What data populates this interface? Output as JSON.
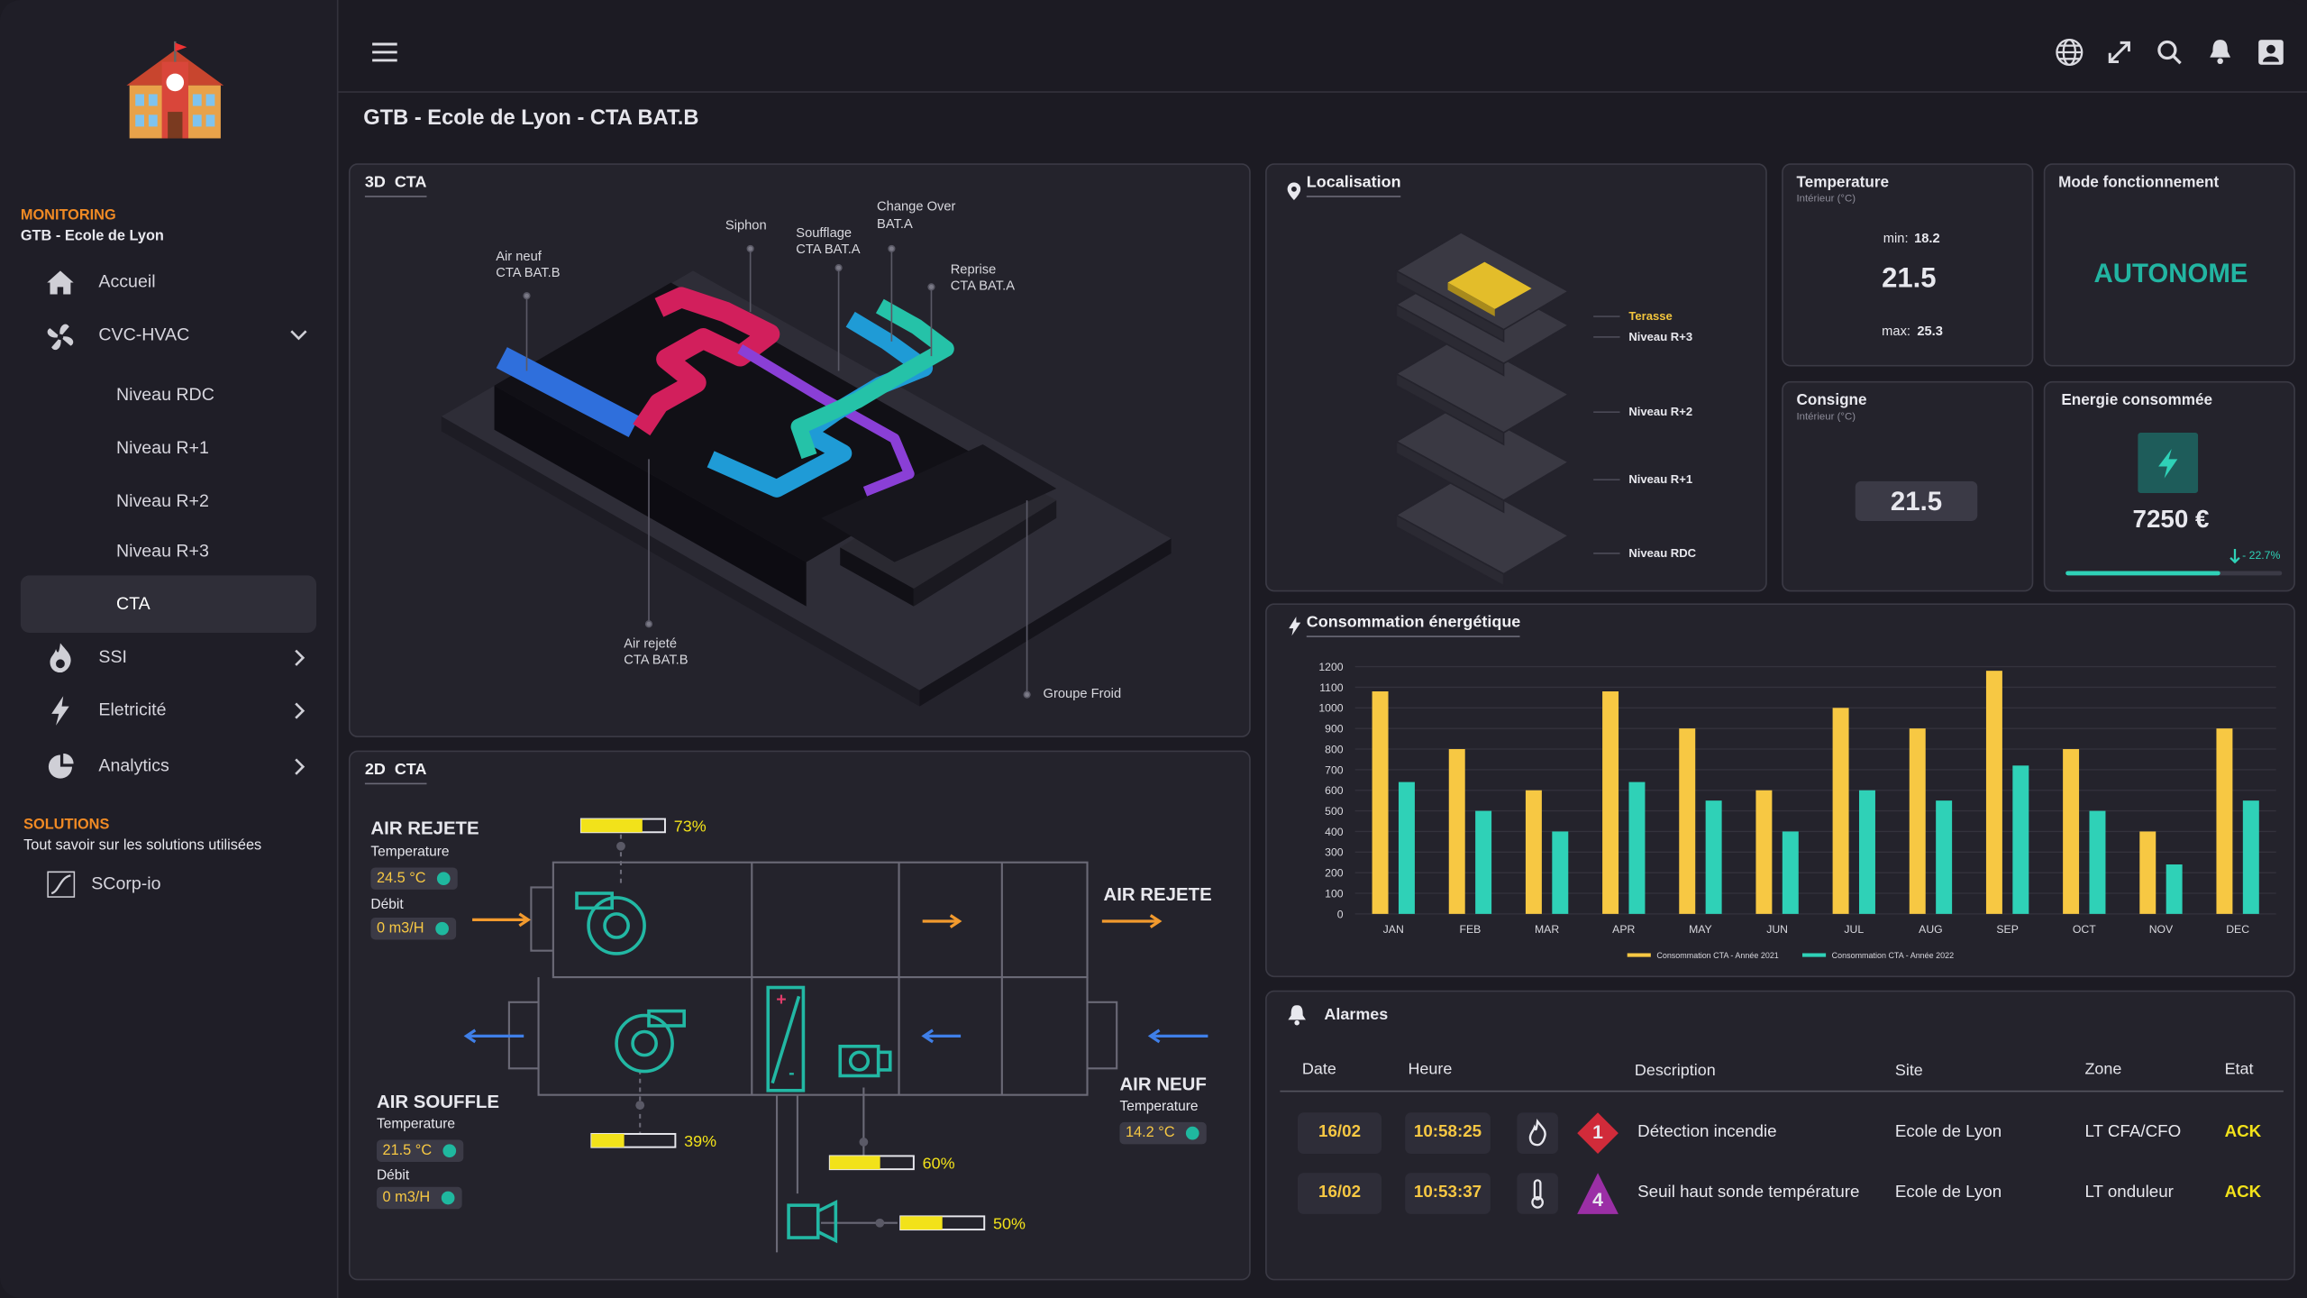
{
  "header": {
    "page_title": "GTB - Ecole de Lyon - CTA BAT.B"
  },
  "sidebar": {
    "section_label": "MONITORING",
    "site": "GTB - Ecole de Lyon",
    "nav": [
      "Accueil",
      "CVC-HVAC",
      "Niveau RDC",
      "Niveau R+1",
      "Niveau R+2",
      "Niveau R+3",
      "CTA",
      "SSI",
      "Eletricité",
      "Analytics"
    ],
    "solutions_label": "SOLUTIONS",
    "solutions_subtitle": "Tout savoir sur les solutions utilisées",
    "solutions_link": "SCorp-io"
  },
  "panel_3d": {
    "title": "3D  CTA",
    "labels": [
      {
        "name": "Air neuf",
        "sub": "CTA BAT.B"
      },
      {
        "name": "Siphon"
      },
      {
        "name": "Soufflage",
        "sub": "CTA BAT.A"
      },
      {
        "name": "Change Over",
        "sub": "BAT.A"
      },
      {
        "name": "Reprise",
        "sub": "CTA BAT.A"
      },
      {
        "name": "Air rejeté",
        "sub": "CTA BAT.B"
      },
      {
        "name": "Groupe Froid"
      }
    ]
  },
  "panel_2d": {
    "title": "2D  CTA",
    "air_rejete": {
      "name": "AIR REJETE",
      "temp_label": "Temperature",
      "temp": "24.5 °C",
      "flow_label": "Débit",
      "flow": "0 m3/H"
    },
    "air_rejete_out": "AIR REJETE",
    "air_souffle": {
      "name": "AIR SOUFFLE",
      "temp_label": "Temperature",
      "temp": "21.5 °C",
      "flow_label": "Débit",
      "flow": "0 m3/H"
    },
    "air_neuf": {
      "name": "AIR NEUF",
      "temp_label": "Temperature",
      "temp": "14.2 °C"
    },
    "gauge_lim": [
      0,
      100
    ],
    "gauges": [
      {
        "value": 73,
        "label": "73%"
      },
      {
        "value": 39,
        "label": "39%"
      },
      {
        "value": 60,
        "label": "60%"
      },
      {
        "value": 50,
        "label": "50%"
      }
    ]
  },
  "localisation": {
    "title": "Localisation",
    "levels": [
      "Terasse",
      "Niveau R+3",
      "Niveau R+2",
      "Niveau R+1",
      "Niveau RDC"
    ]
  },
  "temperature": {
    "title": "Temperature",
    "subtitle": "Intérieur (°C)",
    "min_label": "min:",
    "min": 18.2,
    "value": 21.5,
    "max_label": "max:",
    "max": 25.3
  },
  "mode": {
    "title": "Mode fonctionnement",
    "value": "AUTONOME"
  },
  "consigne": {
    "title": "Consigne",
    "subtitle": "Intérieur (°C)",
    "value": 21.5
  },
  "energy": {
    "title": "Energie consommée",
    "value": "7250 €",
    "change": "- 22.7%"
  },
  "chart_data": {
    "type": "bar",
    "title": "Consommation énergétique",
    "categories": [
      "JAN",
      "FEB",
      "MAR",
      "APR",
      "MAY",
      "JUN",
      "JUL",
      "AUG",
      "SEP",
      "OCT",
      "NOV",
      "DEC"
    ],
    "series": [
      {
        "name": "Consommation CTA - Année 2021",
        "color": "#f7c843",
        "values": [
          1080,
          800,
          600,
          1080,
          900,
          600,
          1000,
          900,
          1180,
          800,
          400,
          900
        ]
      },
      {
        "name": "Consommation CTA - Année 2022",
        "color": "#2fd1b7",
        "values": [
          640,
          500,
          400,
          640,
          550,
          400,
          600,
          550,
          720,
          500,
          240,
          550
        ]
      }
    ],
    "ylim": [
      0,
      1200
    ],
    "yticks": [
      0,
      100,
      200,
      300,
      400,
      500,
      600,
      700,
      800,
      900,
      1000,
      1100,
      1200
    ],
    "grid": true,
    "legend": "bottom"
  },
  "alarms": {
    "title": "Alarmes",
    "columns": [
      "Date",
      "Heure",
      "Description",
      "Site",
      "Zone",
      "Etat"
    ],
    "rows": [
      {
        "date": "16/02",
        "time": "10:58:25",
        "level": 1,
        "description": "Détection incendie",
        "site": "Ecole de Lyon",
        "zone": "LT CFA/CFO",
        "state": "ACK"
      },
      {
        "date": "16/02",
        "time": "10:53:37",
        "level": 4,
        "description": "Seuil haut sonde température",
        "site": "Ecole de Lyon",
        "zone": "LT onduleur",
        "state": "ACK"
      }
    ]
  }
}
